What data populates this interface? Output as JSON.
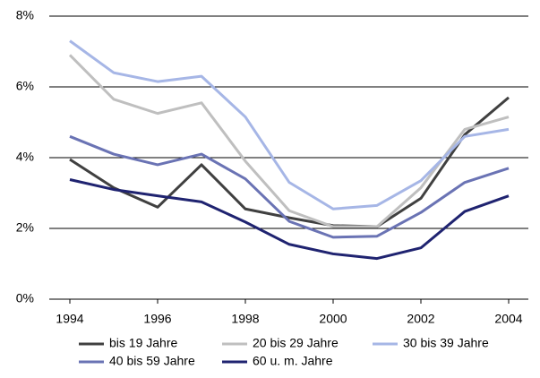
{
  "chart_data": {
    "type": "line",
    "x": [
      1994,
      1995,
      1996,
      1997,
      1998,
      1999,
      2000,
      2001,
      2002,
      2003,
      2004
    ],
    "xlim": [
      1994,
      2004
    ],
    "xticks": [
      1994,
      1996,
      1998,
      2000,
      2002,
      2004
    ],
    "ylim": [
      0,
      8
    ],
    "yticks": [
      {
        "value": 0,
        "label": "0%"
      },
      {
        "value": 2,
        "label": "2%"
      },
      {
        "value": 4,
        "label": "4%"
      },
      {
        "value": 6,
        "label": "6%"
      },
      {
        "value": 8,
        "label": "8%"
      }
    ],
    "grid": true,
    "series": [
      {
        "name": "bis 19 Jahre",
        "color": "#404040",
        "values": [
          3.95,
          3.15,
          2.6,
          3.8,
          2.55,
          2.3,
          2.08,
          2.05,
          2.85,
          4.65,
          5.7
        ]
      },
      {
        "name": "20 bis 29 Jahre",
        "color": "#bfbfbf",
        "values": [
          6.9,
          5.65,
          5.25,
          5.55,
          3.9,
          2.5,
          2.05,
          2.05,
          3.15,
          4.8,
          5.15
        ]
      },
      {
        "name": "30 bis 39 Jahre",
        "color": "#a6b6e6",
        "values": [
          7.3,
          6.4,
          6.15,
          6.3,
          5.15,
          3.3,
          2.55,
          2.65,
          3.35,
          4.6,
          4.8
        ]
      },
      {
        "name": "40 bis 59 Jahre",
        "color": "#6a73b4",
        "values": [
          4.6,
          4.1,
          3.8,
          4.1,
          3.4,
          2.2,
          1.75,
          1.78,
          2.45,
          3.3,
          3.7
        ]
      },
      {
        "name": "60 u. m. Jahre",
        "color": "#1f2370",
        "values": [
          3.38,
          3.1,
          2.92,
          2.75,
          2.18,
          1.55,
          1.28,
          1.15,
          1.45,
          2.48,
          2.92
        ]
      }
    ]
  }
}
